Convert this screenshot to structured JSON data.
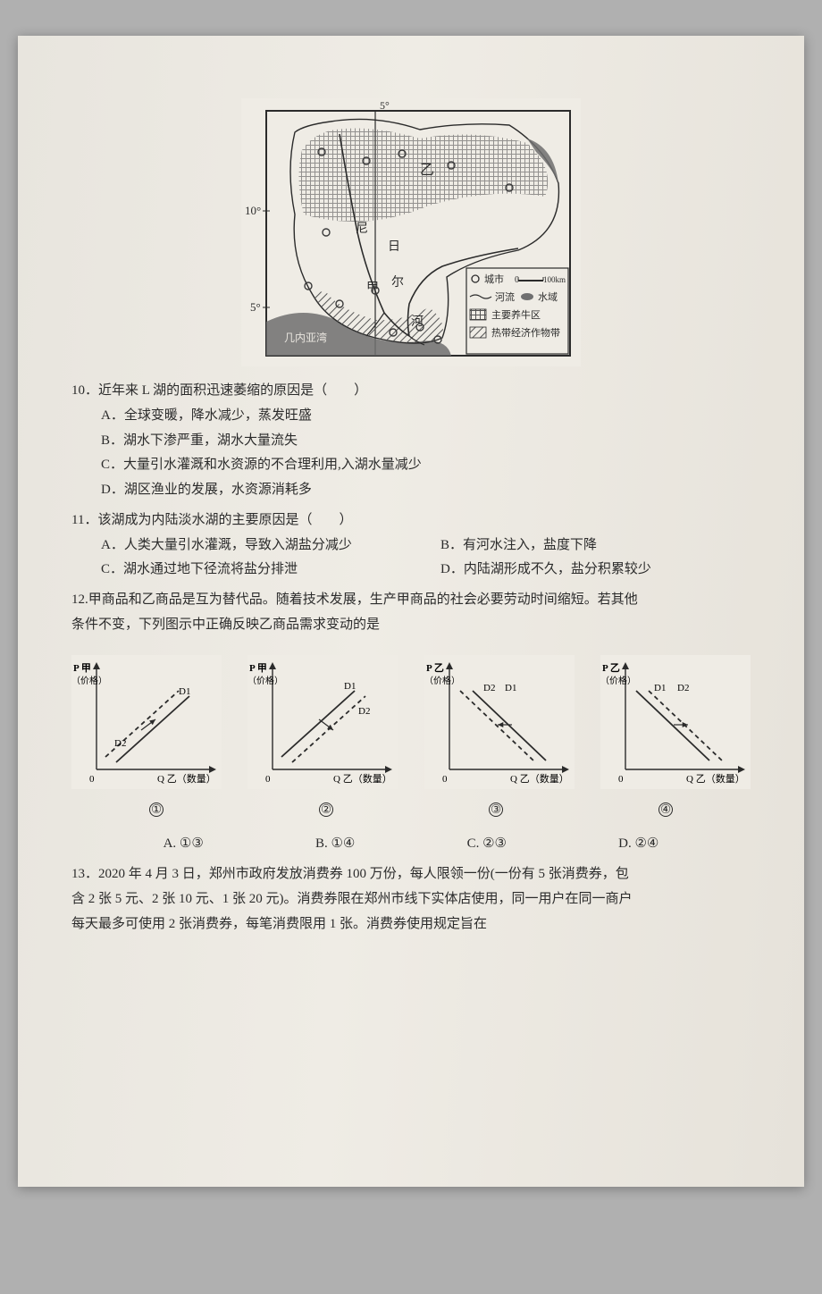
{
  "map": {
    "lat_top": "5°",
    "lat_mid": "10°",
    "lat_bot": "5°",
    "river_label_1": "尼",
    "river_label_2": "日",
    "river_label_3": "尔",
    "river_label_4": "河",
    "region_label": "乙",
    "city_label": "甲",
    "coast_label": "几内亚湾",
    "legend": {
      "city": "城市",
      "scale": "100km",
      "scale_zero": "0",
      "river": "河流",
      "water": "水域",
      "cattle": "主要养牛区",
      "tropical": "热带经济作物带"
    },
    "colors": {
      "frame": "#2b2b2b",
      "land": "#efece5",
      "water": "#6f6f6f",
      "hatch": "#555555",
      "dots": "#3a3a3a",
      "river": "#2b2b2b"
    }
  },
  "q10": {
    "stem": "10．近年来 L 湖的面积迅速萎缩的原因是（　　）",
    "A": "A．全球变暖，降水减少，蒸发旺盛",
    "B": "B．湖水下渗严重，湖水大量流失",
    "C": "C．大量引水灌溉和水资源的不合理利用,入湖水量减少",
    "D": "D．湖区渔业的发展，水资源消耗多"
  },
  "q11": {
    "stem": "11．该湖成为内陆淡水湖的主要原因是（　　）",
    "A": "A．人类大量引水灌溉，导致入湖盐分减少",
    "B": "B．有河水注入，盐度下降",
    "C": "C．湖水通过地下径流将盐分排泄",
    "D": "D．内陆湖形成不久，盐分积累较少"
  },
  "q12": {
    "stem1": "12.甲商品和乙商品是互为替代品。随着技术发展，生产甲商品的社会必要劳动时间缩短。若其他",
    "stem2": "条件不变，下列图示中正确反映乙商品需求变动的是",
    "graph_y_jia": "P 甲",
    "graph_y_yi": "P 乙",
    "graph_y_sub": "（价格）",
    "graph_x": "Q 乙（数量）",
    "d1": "D1",
    "d2": "D2",
    "zero": "0",
    "nums": {
      "g1": "①",
      "g2": "②",
      "g3": "③",
      "g4": "④"
    },
    "answers": {
      "A": "A. ①③",
      "B": "B. ①④",
      "C": "C. ②③",
      "D": "D. ②④"
    },
    "style": {
      "axis_color": "#2b2b2b",
      "line_color": "#2b2b2b",
      "dash": "4 3",
      "label_font": 11
    }
  },
  "q13": {
    "l1": "13．2020 年 4 月 3 日，郑州市政府发放消费券 100 万份，每人限领一份(一份有 5 张消费券，包",
    "l2": "含 2 张 5 元、2 张 10 元、1 张 20 元)。消费券限在郑州市线下实体店使用，同一用户在同一商户",
    "l3": "每天最多可使用 2 张消费券，每笔消费限用 1 张。消费券使用规定旨在"
  }
}
